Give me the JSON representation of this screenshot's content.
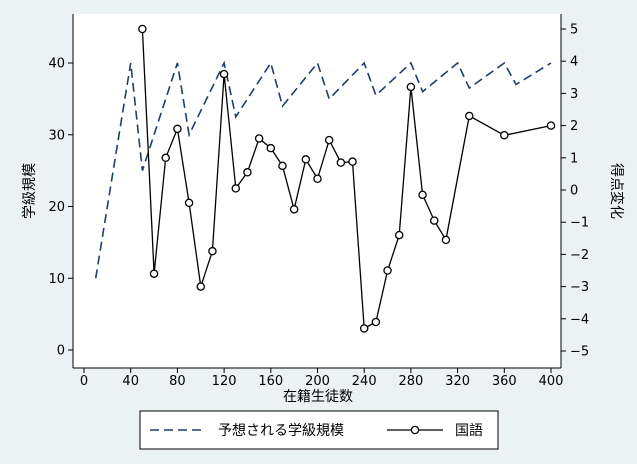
{
  "chart_data": {
    "type": "line",
    "xlabel": "在籍生徒数",
    "ylabel_left": "学級規模",
    "ylabel_right": "得点変化",
    "xlim": [
      0,
      400
    ],
    "ylim_left": [
      0,
      46
    ],
    "ylim_right": [
      -5.1,
      5.3
    ],
    "x_ticks": [
      0,
      40,
      80,
      120,
      160,
      200,
      240,
      280,
      320,
      360,
      400
    ],
    "y_left_ticks": [
      0,
      10,
      20,
      30,
      40
    ],
    "y_right_ticks": [
      -5,
      -4,
      -3,
      -2,
      -1,
      0,
      1,
      2,
      3,
      4,
      5
    ],
    "grid": false,
    "legend_position": "bottom",
    "series": [
      {
        "name": "予想される学級規模",
        "axis": "left",
        "style": "dashed",
        "color": "#1f3d6d",
        "x": [
          10,
          40,
          50,
          80,
          90,
          120,
          130,
          160,
          170,
          200,
          210,
          240,
          250,
          280,
          290,
          320,
          330,
          360,
          370,
          400
        ],
        "y": [
          10,
          40,
          25,
          40,
          30,
          40,
          32.5,
          40,
          34,
          40,
          35,
          40,
          35.5,
          40,
          36,
          40,
          36.5,
          40,
          37,
          40
        ]
      },
      {
        "name": "国語",
        "axis": "right",
        "style": "solid",
        "marker": "circle",
        "color": "#000000",
        "x": [
          50,
          60,
          70,
          80,
          90,
          100,
          110,
          120,
          130,
          140,
          150,
          160,
          170,
          180,
          190,
          200,
          210,
          220,
          230,
          240,
          250,
          260,
          270,
          280,
          290,
          300,
          310,
          330,
          360,
          400
        ],
        "y": [
          5.0,
          -2.6,
          1.0,
          1.9,
          -0.4,
          -3.0,
          -1.9,
          3.6,
          0.05,
          0.55,
          1.6,
          1.3,
          0.75,
          -0.6,
          0.95,
          0.35,
          1.55,
          0.85,
          0.88,
          -4.3,
          -4.1,
          -2.5,
          -1.4,
          3.2,
          -0.15,
          -0.95,
          -1.55,
          2.3,
          1.7,
          2.0
        ]
      }
    ]
  }
}
